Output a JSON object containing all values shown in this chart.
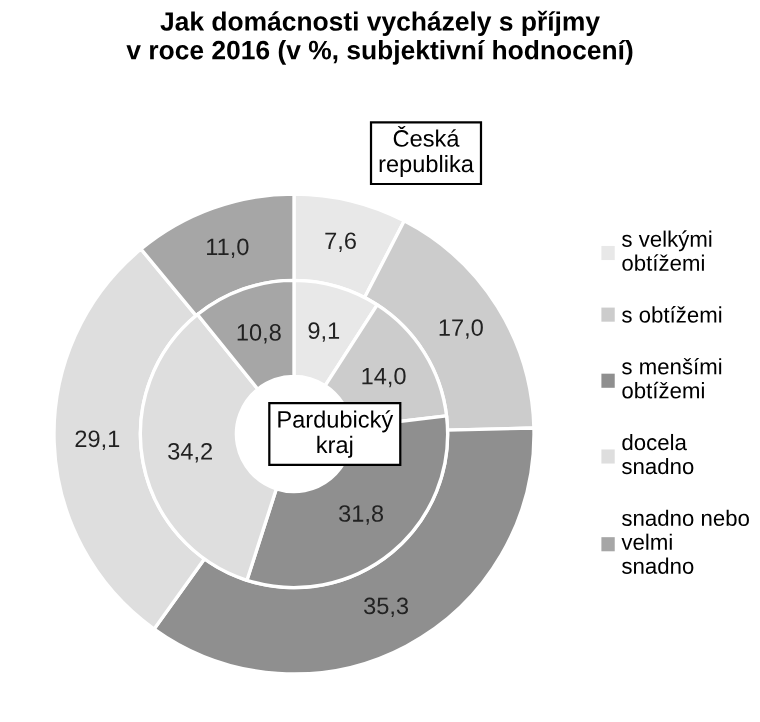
{
  "chart_data": {
    "type": "donut",
    "title": "Jak domácnosti vycházely s příjmy\nv roce 2016 (v %, subjektivní hodnocení)",
    "categories": [
      "s velkými\nobtížemi",
      "s obtížemi",
      "s menšími\nobtížemi",
      "docela\nsnadno",
      "snadno nebo\nvelmi\nsnadno"
    ],
    "colors": [
      "#e8e8e8",
      "#cccccc",
      "#8f8f8f",
      "#dedede",
      "#a6a6a6"
    ],
    "series": [
      {
        "name": "Česká republika",
        "values": [
          7.6,
          17.0,
          35.3,
          29.1,
          11.0
        ],
        "value_labels": [
          "7,6",
          "17,0",
          "35,3",
          "29,1",
          "11,0"
        ]
      },
      {
        "name": "Pardubický kraj",
        "values": [
          9.1,
          14.0,
          31.8,
          34.2,
          10.8
        ],
        "value_labels": [
          "9,1",
          "14,0",
          "31,8",
          "34,2",
          "10,8"
        ]
      }
    ],
    "legend": "right"
  }
}
